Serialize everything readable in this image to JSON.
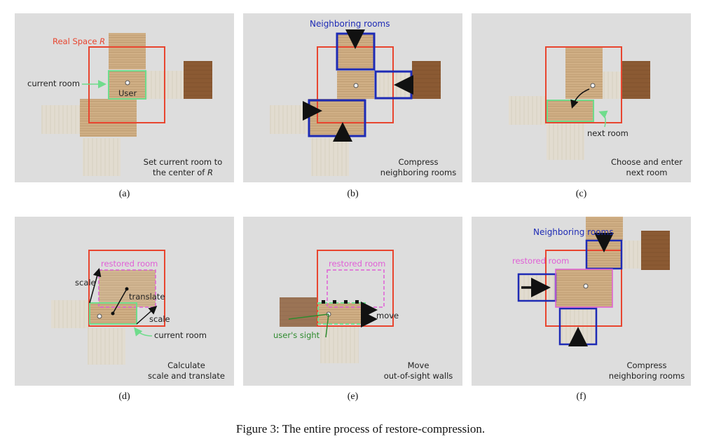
{
  "figure_caption": "Figure 3: The entire process of restore-compression.",
  "colors": {
    "panel_bg": "#dddddd",
    "real_space": "#e8452f",
    "current_room": "#6fdc8c",
    "neighbor": "#1e2bb5",
    "restored": "#e05fd6",
    "sight": "#2e8b2e",
    "wood_light": "#cfae84",
    "wood_dark": "#8b5a33",
    "floor_pale": "#e2dcd0"
  },
  "panels": [
    {
      "label": "(a)",
      "annotations": {
        "real_space": "Real Space",
        "real_space_symbol": "R",
        "current_room": "current room",
        "user": "User"
      },
      "description_lines": [
        "Set current room to",
        "the center of"
      ],
      "description_symbol": "R"
    },
    {
      "label": "(b)",
      "annotations": {
        "neighboring_rooms": "Neighboring rooms"
      },
      "description_lines": [
        "Compress",
        "neighboring rooms"
      ]
    },
    {
      "label": "(c)",
      "annotations": {
        "next_room": "next room"
      },
      "description_lines": [
        "Choose and enter",
        "next room"
      ]
    },
    {
      "label": "(d)",
      "annotations": {
        "restored_room": "restored room",
        "scale_top": "scale",
        "translate": "translate",
        "scale_bottom": "scale",
        "current_room": "current room"
      },
      "description_lines": [
        "Calculate",
        "scale and translate"
      ]
    },
    {
      "label": "(e)",
      "annotations": {
        "restored_room": "restored room",
        "move": "move",
        "users_sight": "user's sight"
      },
      "description_lines": [
        "Move",
        "out-of-sight walls"
      ]
    },
    {
      "label": "(f)",
      "annotations": {
        "neighboring_rooms": "Neighboring rooms",
        "restored_room": "restored room"
      },
      "description_lines": [
        "Compress",
        "neighboring rooms"
      ]
    }
  ]
}
